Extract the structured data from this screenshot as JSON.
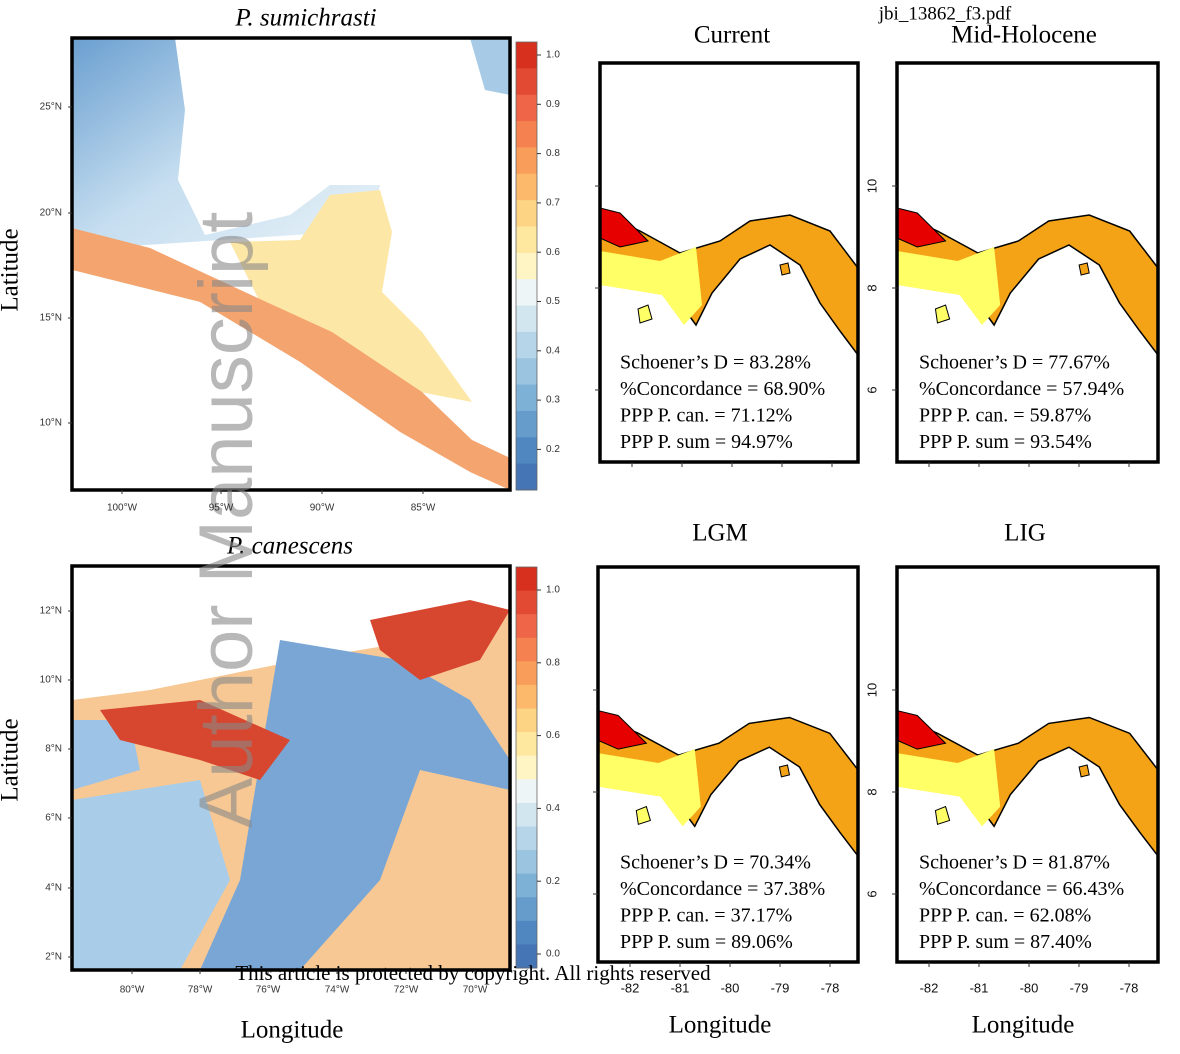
{
  "header": {
    "filename": "jbi_13862_f3.pdf"
  },
  "watermark": "Author Manuscript",
  "footer": "This article is protected by copyright. All rights reserved",
  "left_panels": [
    {
      "title": "P. sumichrasti",
      "y_label": "Latitude",
      "yticks": [
        "25°N",
        "20°N",
        "15°N",
        "10°N"
      ],
      "xticks": [
        "100°W",
        "95°W",
        "90°W",
        "85°W"
      ],
      "colorbar_ticks": [
        "1.0",
        "0.9",
        "0.8",
        "0.7",
        "0.6",
        "0.5",
        "0.4",
        "0.3",
        "0.2"
      ]
    },
    {
      "title": "P. canescens",
      "y_label": "Latitude",
      "x_label": "Longitude",
      "yticks": [
        "12°N",
        "10°N",
        "8°N",
        "6°N",
        "4°N",
        "2°N"
      ],
      "xticks": [
        "80°W",
        "78°W",
        "76°W",
        "74°W",
        "72°W",
        "70°W"
      ],
      "colorbar_ticks": [
        "1.0",
        "0.8",
        "0.6",
        "0.4",
        "0.2",
        "0.0"
      ]
    }
  ],
  "right_panels": [
    {
      "title": "Current",
      "stats": [
        "Schoener’s D = 83.28%",
        "%Concordance = 68.90%",
        "PPP P. can. =  71.12%",
        "PPP P. sum = 94.97%"
      ]
    },
    {
      "title": "Mid-Holocene",
      "stats": [
        "Schoener’s D = 77.67%",
        "%Concordance = 57.94%",
        "PPP P. can. =  59.87%",
        "PPP P. sum = 93.54%"
      ]
    },
    {
      "title": "LGM",
      "stats": [
        "Schoener’s D = 70.34%",
        "%Concordance = 37.38%",
        "PPP P. can. =  37.17%",
        "PPP P. sum = 89.06%"
      ]
    },
    {
      "title": "LIG",
      "stats": [
        "Schoener’s D = 81.87%",
        "%Concordance = 66.43%",
        "PPP P. can. =  62.08%",
        "PPP P. sum = 87.40%"
      ]
    }
  ],
  "right_yticks": [
    "10",
    "8",
    "6"
  ],
  "right_xticks": [
    "-82",
    "-81",
    "-80",
    "-79",
    "-78"
  ],
  "right_x_label": "Longitude"
}
